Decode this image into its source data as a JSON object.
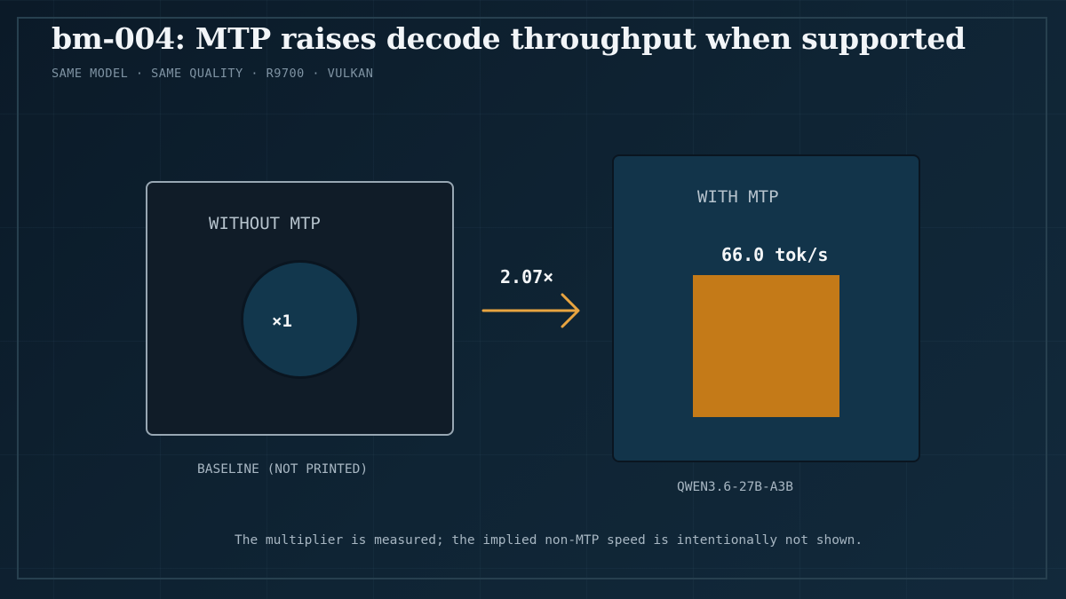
{
  "title": "bm-004: MTP raises decode throughput when supported",
  "subtitle": "SAME MODEL · SAME QUALITY · R9700 · VULKAN",
  "baseline": {
    "label": "WITHOUT MTP",
    "multiplier_label": "×1",
    "caption": "BASELINE (NOT PRINTED)"
  },
  "comparison": {
    "multiplier_label": "2.07×",
    "arrow_color": "#e8a440"
  },
  "with_mtp": {
    "label": "WITH MTP",
    "speed_label": "66.0 tok/s",
    "caption": "QWEN3.6-27B-A3B",
    "block_color": "#c47a18"
  },
  "footnote": "The multiplier is measured; the implied non-MTP speed is intentionally not shown."
}
